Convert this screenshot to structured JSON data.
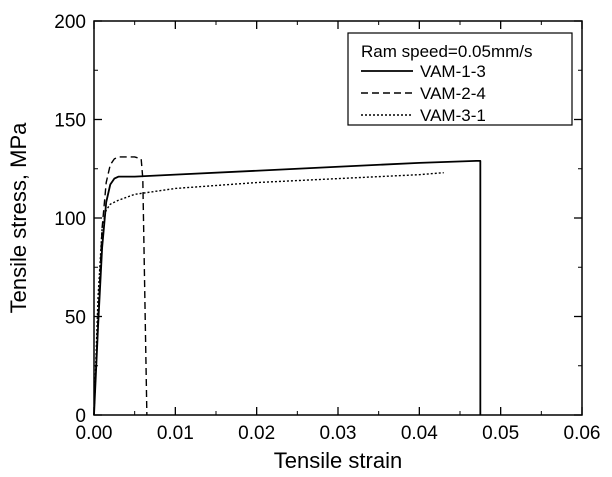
{
  "chart_data": {
    "type": "line",
    "xlabel": "Tensile strain",
    "ylabel": "Tensile stress, MPa",
    "xlim": [
      0,
      0.06
    ],
    "ylim": [
      0,
      200
    ],
    "xticks": [
      0.0,
      0.01,
      0.02,
      0.03,
      0.04,
      0.05,
      0.06
    ],
    "xtick_labels": [
      "0.00",
      "0.01",
      "0.02",
      "0.03",
      "0.04",
      "0.05",
      "0.06"
    ],
    "yticks": [
      0,
      50,
      100,
      150,
      200
    ],
    "ytick_labels": [
      "0",
      "50",
      "100",
      "150",
      "200"
    ],
    "grid": false,
    "legend": {
      "title": "Ram speed=0.05mm/s",
      "placement": "top-right"
    },
    "series": [
      {
        "name": "VAM-1-3",
        "style": "solid",
        "x": [
          0.0,
          0.0005,
          0.001,
          0.0015,
          0.002,
          0.0025,
          0.003,
          0.005,
          0.01,
          0.02,
          0.03,
          0.04,
          0.047,
          0.0475,
          0.0475
        ],
        "y": [
          0,
          45,
          85,
          108,
          117,
          120,
          121,
          121,
          122,
          124,
          126,
          128,
          129,
          129,
          0
        ]
      },
      {
        "name": "VAM-2-4",
        "style": "dashed",
        "x": [
          0.0,
          0.0005,
          0.001,
          0.0015,
          0.002,
          0.0025,
          0.003,
          0.004,
          0.005,
          0.0058,
          0.006,
          0.0065
        ],
        "y": [
          0,
          50,
          95,
          118,
          127,
          130,
          131,
          131,
          131,
          130,
          120,
          0
        ]
      },
      {
        "name": "VAM-3-1",
        "style": "dotted",
        "x": [
          0.0,
          0.0005,
          0.001,
          0.0015,
          0.002,
          0.003,
          0.005,
          0.01,
          0.02,
          0.03,
          0.04,
          0.043
        ],
        "y": [
          0,
          60,
          95,
          104,
          107,
          109,
          112,
          115,
          118,
          120,
          122,
          123
        ]
      }
    ]
  }
}
